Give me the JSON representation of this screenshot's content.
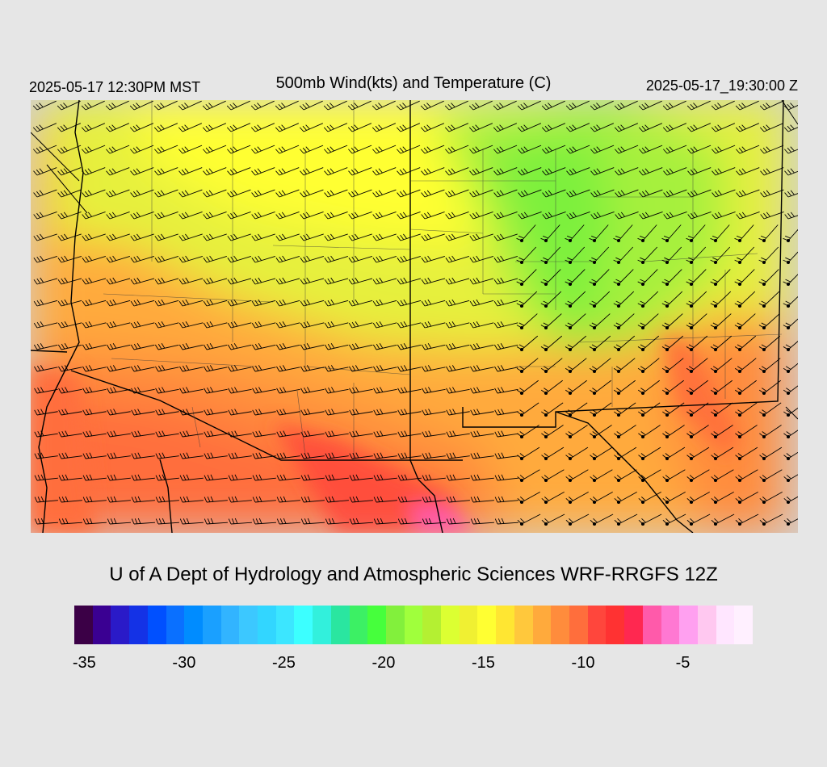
{
  "header": {
    "local_time": "2025-05-17 12:30PM MST",
    "title": "500mb Wind(kts) and Temperature (C)",
    "utc_time": "2025-05-17_19:30:00 Z"
  },
  "credit": "U of A Dept of Hydrology and Atmospheric Sciences WRF-RRGFS 12Z",
  "colorbar": {
    "colors": [
      "#3b0046",
      "#3a0092",
      "#2a1ac8",
      "#1432e6",
      "#0050ff",
      "#0a70ff",
      "#008cff",
      "#1aa0ff",
      "#32b4ff",
      "#3cc8ff",
      "#32d6ff",
      "#3ce6ff",
      "#3cffff",
      "#32f0dc",
      "#2ae6a0",
      "#3cf064",
      "#46ff3c",
      "#82f03c",
      "#a0ff3c",
      "#b4f032",
      "#dcff32",
      "#f0f032",
      "#ffff32",
      "#ffe632",
      "#ffc83c",
      "#ffaa3c",
      "#ff8c3c",
      "#ff6e3c",
      "#ff463c",
      "#ff3232",
      "#ff2850",
      "#ff5aaa",
      "#ff78d2",
      "#ffa0f0",
      "#ffc8f0",
      "#ffe6ff",
      "#fff0ff"
    ],
    "tick_labels": [
      "-35",
      "-30",
      "-25",
      "-20",
      "-15",
      "-10",
      "-5"
    ],
    "tick_values": [
      -35,
      -30,
      -25,
      -20,
      -15,
      -10,
      -5
    ],
    "min": -35.5,
    "max": -1.5,
    "unit": "C"
  },
  "map": {
    "fill_colors": {
      "cool": "#7cf03c",
      "mid": "#ffff32",
      "warm": "#ffaa3c",
      "hot": "#ff6e3c",
      "hotter": "#ff463c",
      "hottest": "#ff5aaa",
      "nodata": "#d2d2d2"
    }
  }
}
